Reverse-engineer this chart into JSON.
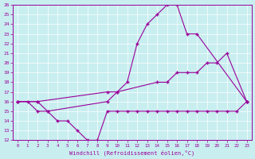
{
  "xlabel": "Windchill (Refroidissement éolien,°C)",
  "bg_color": "#c8eef0",
  "line_color": "#990099",
  "xlim": [
    -0.5,
    23.5
  ],
  "ylim": [
    12,
    26
  ],
  "xticks": [
    0,
    1,
    2,
    3,
    4,
    5,
    6,
    7,
    8,
    9,
    10,
    11,
    12,
    13,
    14,
    15,
    16,
    17,
    18,
    19,
    20,
    21,
    22,
    23
  ],
  "yticks": [
    12,
    13,
    14,
    15,
    16,
    17,
    18,
    19,
    20,
    21,
    22,
    23,
    24,
    25,
    26
  ],
  "line1_x": [
    0,
    2,
    3,
    9,
    10,
    11,
    12,
    13,
    14,
    15,
    16,
    17,
    18,
    23
  ],
  "line1_y": [
    16,
    16,
    15,
    16,
    17,
    18,
    22,
    24,
    25,
    26,
    26,
    23,
    23,
    16
  ],
  "line2_x": [
    0,
    2,
    9,
    10,
    14,
    15,
    16,
    17,
    18,
    19,
    20,
    21,
    23
  ],
  "line2_y": [
    16,
    16,
    17,
    17,
    18,
    18,
    19,
    19,
    19,
    20,
    20,
    21,
    16
  ],
  "line3_x": [
    0,
    1,
    2,
    3,
    4,
    5,
    6,
    7,
    8,
    9,
    10,
    11,
    12,
    13,
    14,
    15,
    16,
    17,
    18,
    19,
    20,
    21,
    22,
    23
  ],
  "line3_y": [
    16,
    16,
    15,
    15,
    14,
    14,
    13,
    12,
    12,
    15,
    15,
    15,
    15,
    15,
    15,
    15,
    15,
    15,
    15,
    15,
    15,
    15,
    15,
    16
  ]
}
